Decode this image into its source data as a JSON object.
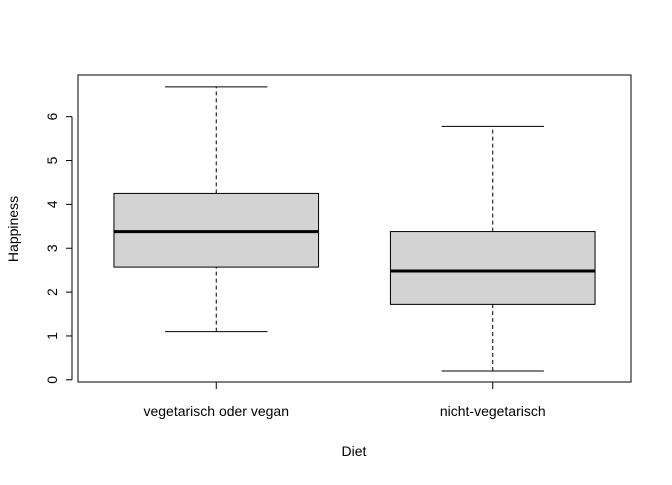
{
  "chart_data": {
    "type": "boxplot",
    "title": "",
    "xlabel": "Diet",
    "ylabel": "Happiness",
    "categories": [
      "vegetarisch oder vegan",
      "nicht-vegetarisch"
    ],
    "boxes": [
      {
        "whisker_low": 1.1,
        "q1": 2.57,
        "median": 3.38,
        "q3": 4.25,
        "whisker_high": 6.68
      },
      {
        "whisker_low": 0.2,
        "q1": 1.72,
        "median": 2.48,
        "q3": 3.38,
        "whisker_high": 5.78
      }
    ],
    "ylim": [
      -0.05,
      6.95
    ],
    "yticks": [
      0,
      1,
      2,
      3,
      4,
      5,
      6
    ],
    "ytick_labels": [
      "0",
      "1",
      "2",
      "3",
      "4",
      "5",
      "6"
    ],
    "grid": false,
    "colors": {
      "box_fill": "#d3d3d3",
      "stroke": "#000000",
      "background": "#ffffff"
    }
  }
}
